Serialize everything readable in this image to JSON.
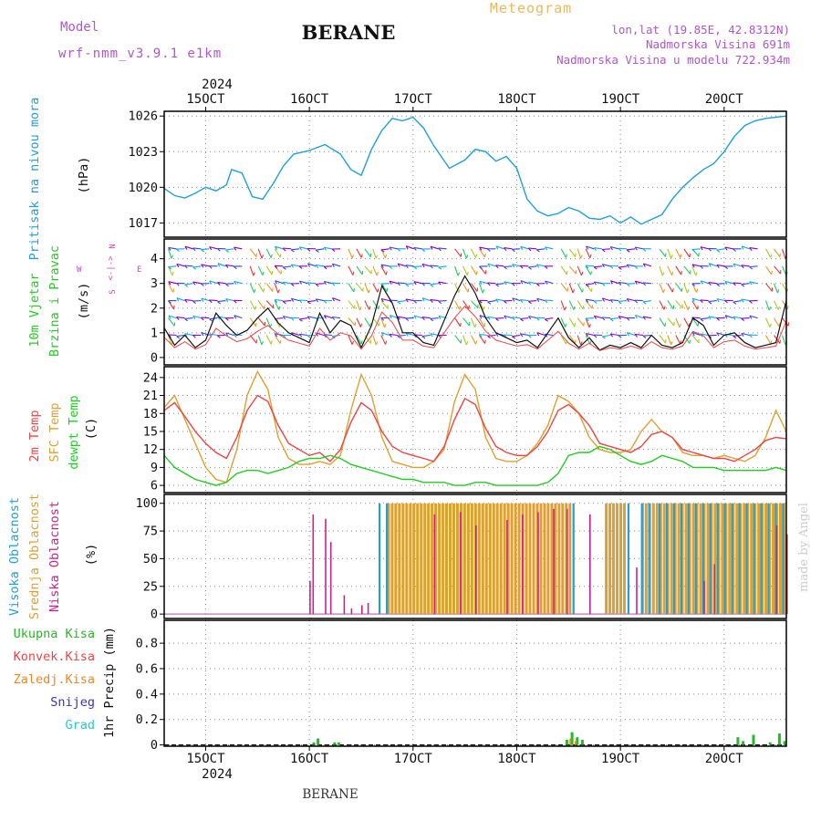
{
  "header": {
    "model_label": "Model",
    "model_name": "wrf-nmm_v3.9.1 e1km",
    "station_title": "BERANE",
    "chart_title": "Meteogram",
    "coords": "lon,lat (19.85E, 42.8312N)",
    "elevation": "Nadmorska Visina 691m",
    "model_elevation": "Nadmorska Visina u modelu 722.934m"
  },
  "footer": {
    "station": "BERANE",
    "credit": "made by Angel"
  },
  "colors": {
    "pressure": "#1ea0dc",
    "temp2m": "#ee4444",
    "sfc": "#e0a030",
    "dewpt": "#22cc22",
    "high_cloud": "#1ea0dc",
    "mid_cloud": "#e0a030",
    "low_cloud": "#cc2288",
    "total": "#22bb22",
    "conv": "#ee4444",
    "frozen": "#ee8822",
    "snow": "#3333cc",
    "graupel": "#22cccc",
    "wind_label": "#cc44cc"
  },
  "time_axis": {
    "year": "2024",
    "days": [
      "15OCT",
      "16OCT",
      "17OCT",
      "18OCT",
      "19OCT",
      "20OCT"
    ],
    "day_start": 14.6,
    "day_end": 20.6
  },
  "wind_legend": [
    "N",
    "E",
    "W",
    "S",
    "<-|->"
  ],
  "chart_data": [
    {
      "type": "line",
      "panel": "pressure",
      "ylabel": [
        "Pritisak na nivou mora",
        "(hPa)"
      ],
      "yticks": [
        1017,
        1020,
        1023,
        1026
      ],
      "ylim": [
        1015.8,
        1026.4
      ],
      "grid": true,
      "series": [
        {
          "x": [
            14.6,
            14.7,
            14.8,
            14.9,
            15.0,
            15.1,
            15.2,
            15.25,
            15.35,
            15.45,
            15.55,
            15.65,
            15.75,
            15.85,
            16.0,
            16.15,
            16.3,
            16.4,
            16.5,
            16.6,
            16.7,
            16.8,
            16.9,
            17.0,
            17.1,
            17.2,
            17.35,
            17.5,
            17.6,
            17.7,
            17.8,
            17.9,
            18.0,
            18.1,
            18.2,
            18.3,
            18.4,
            18.5,
            18.6,
            18.7,
            18.8,
            18.9,
            19.0,
            19.1,
            19.2,
            19.3,
            19.4,
            19.5,
            19.6,
            19.7,
            19.8,
            19.9,
            20.0,
            20.1,
            20.2,
            20.3,
            20.4,
            20.5,
            20.6
          ],
          "values": [
            1019.9,
            1019.3,
            1019.1,
            1019.5,
            1020.0,
            1019.7,
            1020.2,
            1021.5,
            1021.2,
            1019.2,
            1019.0,
            1020.3,
            1021.8,
            1022.8,
            1023.1,
            1023.6,
            1022.8,
            1021.5,
            1021.0,
            1023.2,
            1024.8,
            1025.8,
            1025.6,
            1025.9,
            1025.0,
            1023.5,
            1021.6,
            1022.3,
            1023.2,
            1023.0,
            1022.2,
            1022.6,
            1021.6,
            1019.0,
            1018.0,
            1017.6,
            1017.8,
            1018.3,
            1018.0,
            1017.4,
            1017.3,
            1017.6,
            1017.0,
            1017.5,
            1016.9,
            1017.3,
            1017.7,
            1019.0,
            1020.0,
            1020.8,
            1021.5,
            1022.0,
            1023.0,
            1024.3,
            1025.2,
            1025.6,
            1025.8,
            1025.9,
            1026.0
          ]
        }
      ]
    },
    {
      "type": "line",
      "panel": "wind",
      "ylabel": [
        "10m Vjetar",
        "Brzina i Pravac",
        "(m/s)"
      ],
      "yticks": [
        0,
        1,
        2,
        3,
        4
      ],
      "ylim": [
        -0.3,
        4.8
      ],
      "grid": true,
      "series": [
        {
          "x": [
            14.6,
            14.7,
            14.8,
            14.9,
            15.0,
            15.1,
            15.2,
            15.3,
            15.4,
            15.5,
            15.6,
            15.7,
            15.8,
            15.9,
            16.0,
            16.1,
            16.2,
            16.3,
            16.4,
            16.5,
            16.6,
            16.7,
            16.8,
            16.9,
            17.0,
            17.1,
            17.2,
            17.3,
            17.4,
            17.5,
            17.6,
            17.7,
            17.8,
            17.9,
            18.0,
            18.1,
            18.2,
            18.3,
            18.4,
            18.5,
            18.6,
            18.7,
            18.8,
            18.9,
            19.0,
            19.1,
            19.2,
            19.3,
            19.4,
            19.5,
            19.6,
            19.7,
            19.8,
            19.9,
            20.0,
            20.1,
            20.2,
            20.3,
            20.4,
            20.5,
            20.6
          ],
          "values": [
            1.2,
            0.5,
            0.9,
            0.4,
            0.7,
            1.8,
            1.3,
            0.9,
            1.1,
            1.6,
            2.0,
            1.4,
            1.0,
            0.8,
            0.6,
            1.8,
            1.0,
            1.5,
            1.3,
            0.4,
            1.3,
            2.9,
            2.2,
            1.0,
            1.0,
            0.6,
            0.5,
            1.5,
            2.5,
            3.3,
            2.6,
            1.6,
            1.0,
            0.8,
            0.6,
            0.7,
            0.4,
            1.0,
            1.6,
            0.8,
            0.4,
            0.8,
            0.3,
            0.5,
            0.4,
            0.6,
            0.4,
            0.9,
            0.5,
            0.4,
            0.6,
            1.6,
            1.3,
            0.5,
            0.9,
            1.0,
            0.6,
            0.4,
            0.5,
            0.6,
            2.3
          ]
        }
      ]
    },
    {
      "type": "line",
      "panel": "temperature",
      "ylabel": [
        "2m Temp",
        "SFC Temp",
        "dewpt Temp",
        "(C)"
      ],
      "yticks": [
        6,
        9,
        12,
        15,
        18,
        21,
        24
      ],
      "ylim": [
        4.8,
        25.8
      ],
      "grid": true,
      "x": [
        14.6,
        14.7,
        14.8,
        14.9,
        15.0,
        15.1,
        15.2,
        15.3,
        15.4,
        15.5,
        15.6,
        15.7,
        15.8,
        15.9,
        16.0,
        16.1,
        16.2,
        16.3,
        16.4,
        16.5,
        16.6,
        16.7,
        16.8,
        16.9,
        17.0,
        17.1,
        17.2,
        17.3,
        17.4,
        17.5,
        17.6,
        17.7,
        17.8,
        17.9,
        18.0,
        18.1,
        18.2,
        18.3,
        18.4,
        18.5,
        18.6,
        18.7,
        18.8,
        18.9,
        19.0,
        19.1,
        19.2,
        19.3,
        19.4,
        19.5,
        19.6,
        19.7,
        19.8,
        19.9,
        20.0,
        20.1,
        20.2,
        20.3,
        20.4,
        20.5,
        20.6
      ],
      "series": [
        {
          "name": "2m Temp",
          "values": [
            18.5,
            19.8,
            17.5,
            15.0,
            13.0,
            11.5,
            10.5,
            14.0,
            18.5,
            21.0,
            20.0,
            16.0,
            13.0,
            12.0,
            11.0,
            11.5,
            10.0,
            12.0,
            16.5,
            19.8,
            18.5,
            15.0,
            12.5,
            11.5,
            11.0,
            10.5,
            10.0,
            12.5,
            17.0,
            20.5,
            19.5,
            15.5,
            12.5,
            11.5,
            11.0,
            11.0,
            12.5,
            15.0,
            18.5,
            19.5,
            18.0,
            16.0,
            13.0,
            12.5,
            12.0,
            11.5,
            12.5,
            14.5,
            15.0,
            14.0,
            12.0,
            11.5,
            11.0,
            10.5,
            10.5,
            10.0,
            11.0,
            12.0,
            13.5,
            14.0,
            13.8
          ]
        },
        {
          "name": "SFC Temp",
          "values": [
            19.0,
            21.0,
            17.0,
            13.0,
            9.0,
            7.0,
            6.5,
            12.0,
            21.0,
            25.0,
            22.0,
            14.0,
            10.5,
            9.5,
            9.5,
            10.0,
            9.5,
            11.0,
            18.5,
            24.5,
            21.0,
            14.0,
            10.0,
            9.5,
            9.0,
            9.0,
            10.0,
            12.0,
            20.0,
            24.5,
            22.0,
            14.0,
            10.5,
            10.0,
            10.0,
            11.0,
            13.0,
            16.0,
            21.0,
            20.0,
            18.0,
            14.0,
            12.0,
            11.5,
            11.5,
            12.0,
            15.0,
            17.0,
            15.0,
            14.0,
            11.5,
            11.0,
            11.0,
            10.5,
            11.0,
            10.5,
            10.0,
            11.0,
            14.0,
            18.5,
            15.0
          ]
        },
        {
          "name": "dewpt Temp",
          "values": [
            11.0,
            9.0,
            8.0,
            7.0,
            6.5,
            6.0,
            6.5,
            8.0,
            8.5,
            8.5,
            8.0,
            8.5,
            9.0,
            10.0,
            10.5,
            10.5,
            11.0,
            10.5,
            9.5,
            9.0,
            8.5,
            8.0,
            7.5,
            7.0,
            7.0,
            6.5,
            6.5,
            6.5,
            6.0,
            6.0,
            6.5,
            6.5,
            6.0,
            6.0,
            6.0,
            6.0,
            6.0,
            6.5,
            8.0,
            11.0,
            11.5,
            11.5,
            12.5,
            12.0,
            11.0,
            10.0,
            9.5,
            10.0,
            11.0,
            10.5,
            10.0,
            9.0,
            9.0,
            9.0,
            8.5,
            8.5,
            8.5,
            8.5,
            8.5,
            9.0,
            8.5
          ]
        }
      ]
    },
    {
      "type": "bar",
      "panel": "cloud",
      "ylabel": [
        "Visoka Oblacnost",
        "Srednja Oblacnost",
        "Niska Oblacnost",
        "(%)"
      ],
      "yticks": [
        0,
        25,
        50,
        75,
        100
      ],
      "ylim": [
        -4,
        108
      ],
      "grid": true,
      "low_cloud": [
        [
          16.0,
          30
        ],
        [
          16.03,
          90
        ],
        [
          16.15,
          86
        ],
        [
          16.2,
          65
        ],
        [
          16.33,
          17
        ],
        [
          16.4,
          5
        ],
        [
          16.5,
          8
        ],
        [
          16.56,
          10
        ],
        [
          17.2,
          90
        ],
        [
          17.45,
          92
        ],
        [
          17.6,
          80
        ],
        [
          17.9,
          85
        ],
        [
          18.05,
          90
        ],
        [
          18.2,
          92
        ],
        [
          18.35,
          95
        ],
        [
          18.48,
          95
        ],
        [
          18.7,
          90
        ],
        [
          19.1,
          0
        ],
        [
          19.15,
          42
        ],
        [
          19.8,
          30
        ],
        [
          19.9,
          45
        ],
        [
          20.5,
          80
        ],
        [
          20.6,
          72
        ]
      ],
      "mid_cloud_spans": [
        [
          16.75,
          18.52
        ],
        [
          18.85,
          19.05
        ],
        [
          19.2,
          20.6
        ]
      ],
      "high_cloud_spans": [
        [
          16.65,
          16.75
        ],
        [
          18.52,
          18.58
        ],
        [
          19.05,
          19.1
        ],
        [
          19.18,
          19.25
        ],
        [
          19.35,
          20.6
        ]
      ],
      "mid_cloud_value": 100,
      "high_cloud_value": 100
    },
    {
      "type": "bar",
      "panel": "precip",
      "ylabel": [
        "1hr Precip (mm)"
      ],
      "legend": [
        "Ukupna Kisa",
        "Konvek.Kisa",
        "Zaledj.Kisa",
        "Snijeg",
        "Grad"
      ],
      "yticks": [
        0,
        0.2,
        0.4,
        0.6,
        0.8
      ],
      "yticklabels": [
        "0",
        "0.2",
        "0.4",
        "0.6",
        "0.8"
      ],
      "ylim": [
        -0.01,
        0.98
      ],
      "grid": true,
      "total": [
        [
          16.03,
          0.02
        ],
        [
          16.07,
          0.05
        ],
        [
          16.23,
          0.02
        ],
        [
          16.27,
          0.02
        ],
        [
          18.47,
          0.04
        ],
        [
          18.52,
          0.1
        ],
        [
          18.57,
          0.06
        ],
        [
          18.62,
          0.04
        ],
        [
          20.12,
          0.06
        ],
        [
          20.17,
          0.03
        ],
        [
          20.27,
          0.08
        ],
        [
          20.43,
          0.02
        ],
        [
          20.52,
          0.09
        ],
        [
          20.57,
          0.03
        ]
      ],
      "frozen": [
        [
          18.5,
          0.05
        ],
        [
          18.55,
          0.03
        ]
      ]
    }
  ]
}
